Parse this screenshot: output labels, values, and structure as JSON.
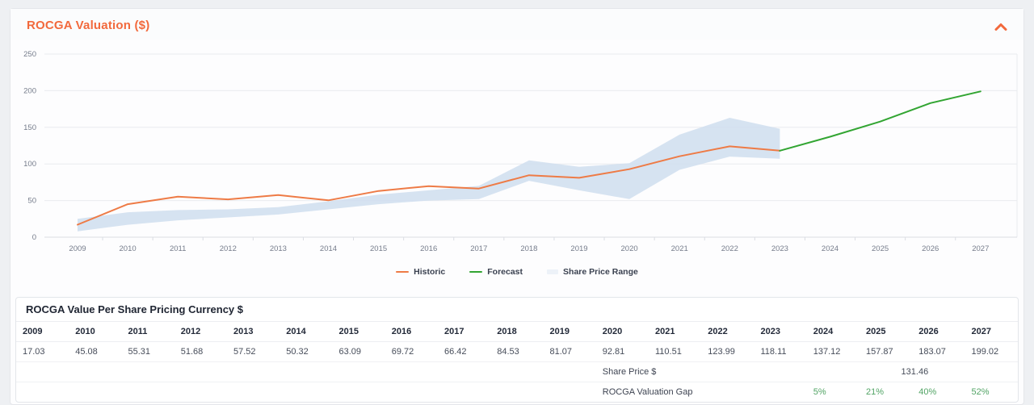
{
  "header": {
    "title": "ROCGA Valuation ($)",
    "icons": {
      "collapse": "chevron-up",
      "collapse_color": "#f2693c"
    }
  },
  "chart_data": {
    "type": "line",
    "title": "ROCGA Valuation ($)",
    "xlabel": "",
    "ylabel": "",
    "x": [
      2009,
      2010,
      2011,
      2012,
      2013,
      2014,
      2015,
      2016,
      2017,
      2018,
      2019,
      2020,
      2021,
      2022,
      2023,
      2024,
      2025,
      2026,
      2027
    ],
    "ylim": [
      0,
      250
    ],
    "yticks": [
      0,
      50,
      100,
      150,
      200,
      250
    ],
    "grid": true,
    "legend_position": "bottom",
    "series": [
      {
        "name": "Historic",
        "type": "line",
        "color": "#ee7b46",
        "x_start_index": 0,
        "values": [
          17.03,
          45.08,
          55.31,
          51.68,
          57.52,
          50.32,
          63.09,
          69.72,
          66.42,
          84.53,
          81.07,
          92.81,
          110.51,
          123.99,
          118.11
        ]
      },
      {
        "name": "Forecast",
        "type": "line",
        "color": "#32a532",
        "x_start_index": 14,
        "values": [
          118.11,
          137.12,
          157.87,
          183.07,
          199.02
        ]
      },
      {
        "name": "Share Price Range",
        "type": "band",
        "color": "#cfdeee",
        "x_start_index": 0,
        "low": [
          8,
          17,
          23,
          27,
          31,
          38,
          45,
          50,
          52,
          77,
          64,
          52,
          92,
          110,
          107
        ],
        "high": [
          25,
          34,
          37,
          38,
          41,
          49,
          58,
          64,
          70,
          105,
          96,
          101,
          140,
          163,
          148
        ]
      }
    ]
  },
  "legend": {
    "historic": "Historic",
    "forecast": "Forecast",
    "range": "Share Price Range"
  },
  "table": {
    "title": "ROCGA Value Per Share Pricing Currency $",
    "years": [
      "2009",
      "2010",
      "2011",
      "2012",
      "2013",
      "2014",
      "2015",
      "2016",
      "2017",
      "2018",
      "2019",
      "2020",
      "2021",
      "2022",
      "2023",
      "2024",
      "2025",
      "2026",
      "2027"
    ],
    "values": [
      "17.03",
      "45.08",
      "55.31",
      "51.68",
      "57.52",
      "50.32",
      "63.09",
      "69.72",
      "66.42",
      "84.53",
      "81.07",
      "92.81",
      "110.51",
      "123.99",
      "118.11",
      "137.12",
      "157.87",
      "183.07",
      "199.02"
    ],
    "share_price_label": "Share Price $",
    "share_price_value": "131.46",
    "gap_label": "ROCGA Valuation Gap",
    "gap_values": [
      "5%",
      "21%",
      "40%",
      "52%"
    ],
    "gap_color": "#52a465"
  }
}
